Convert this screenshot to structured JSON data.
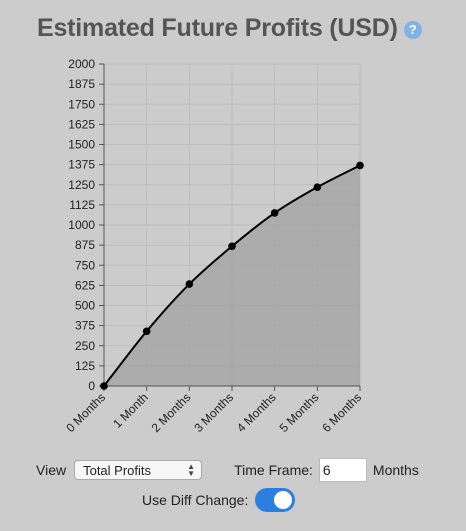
{
  "header": {
    "title": "Estimated Future Profits (USD)",
    "help_icon": "question-circle-icon"
  },
  "chart_data": {
    "type": "area",
    "categories": [
      "0 Months",
      "1 Month",
      "2 Months",
      "3 Months",
      "4 Months",
      "5 Months",
      "6 Months"
    ],
    "values": [
      0,
      340,
      633,
      868,
      1075,
      1235,
      1370
    ],
    "yticks": [
      "0",
      "125",
      "250",
      "375",
      "500",
      "625",
      "750",
      "875",
      "1000",
      "1125",
      "1250",
      "1375",
      "1500",
      "1625",
      "1750",
      "1875",
      "2000"
    ],
    "ylim": [
      0,
      2000
    ],
    "grid": true,
    "colors": {
      "fill": "#a6a6a6",
      "line": "#000000",
      "grid": "#bdbdbd"
    }
  },
  "controls": {
    "view_label": "View",
    "view_value": "Total Profits",
    "timeframe_label": "Time Frame:",
    "timeframe_value": "6",
    "timeframe_unit": "Months",
    "diff_label": "Use Diff Change:",
    "diff_enabled": true
  },
  "colors": {
    "background": "#cccccc",
    "toggle_on": "#2b7fe0",
    "help_icon": "#7fb3e6"
  }
}
